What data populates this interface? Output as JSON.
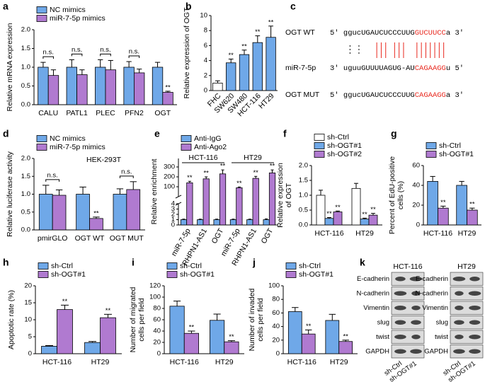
{
  "chart_data": [
    {
      "label": "a",
      "type": "bar",
      "ylabel": "Relative mRNA expression",
      "categories": [
        "CALU",
        "PATL1",
        "PLEC",
        "PFN2",
        "OGT"
      ],
      "series": [
        {
          "name": "NC mimics",
          "color": "#6fa8e8",
          "values": [
            1.0,
            1.0,
            1.0,
            1.0,
            1.0
          ],
          "errors": [
            0.13,
            0.2,
            0.2,
            0.15,
            0.13
          ]
        },
        {
          "name": "miR-7-5p mimics",
          "color": "#b07ad0",
          "values": [
            0.78,
            0.8,
            0.93,
            0.85,
            0.33
          ],
          "errors": [
            0.15,
            0.13,
            0.25,
            0.1,
            0.03
          ],
          "significance": [
            null,
            null,
            null,
            null,
            "**"
          ]
        }
      ],
      "comparison": [
        "n.s.",
        "n.s.",
        "n.s.",
        "n.s.",
        null
      ],
      "ylim": [
        0,
        2
      ],
      "yticks": [
        {
          "value": 0,
          "label": "0.0"
        },
        0.5,
        {
          "value": 1,
          "label": "1.0"
        },
        1.5,
        {
          "value": 2,
          "label": "2.0"
        }
      ],
      "legend": "top"
    },
    {
      "label": "b",
      "type": "bar",
      "ylabel": "Relative expression of OGT",
      "categories": [
        "FHC",
        "SW620",
        "SW480",
        "HCT-116",
        "HT29"
      ],
      "xtick_rotation": 45,
      "values": [
        1.0,
        3.7,
        4.8,
        6.4,
        7.1
      ],
      "errors": [
        0.3,
        0.5,
        0.6,
        0.9,
        1.5
      ],
      "colors": [
        "#ffffff",
        "#6fa8e8",
        "#6fa8e8",
        "#6fa8e8",
        "#6fa8e8"
      ],
      "significance": [
        null,
        "**",
        "**",
        "**",
        "**"
      ],
      "ylim": [
        0,
        10
      ],
      "yticks": [
        0,
        2,
        4,
        6,
        8,
        10
      ]
    },
    {
      "label": "d",
      "type": "bar",
      "ylabel": "Relative luciferase activity",
      "subtitle": "HEK-293T",
      "categories": [
        "pmirGLO",
        "OGT WT",
        "OGT MUT"
      ],
      "series": [
        {
          "name": "NC mimics",
          "color": "#6fa8e8",
          "values": [
            1.0,
            1.0,
            1.0
          ],
          "errors": [
            0.25,
            0.2,
            0.15
          ]
        },
        {
          "name": "miR-7-5p mimics",
          "color": "#b07ad0",
          "values": [
            0.97,
            0.32,
            1.13
          ],
          "errors": [
            0.15,
            0.04,
            0.22
          ],
          "significance": [
            null,
            "**",
            null
          ]
        }
      ],
      "comparison": [
        "n.s.",
        null,
        "n.s."
      ],
      "ylim": [
        0,
        2
      ],
      "yticks": [
        {
          "value": 0,
          "label": "0.0"
        },
        0.5,
        {
          "value": 1,
          "label": "1.0"
        },
        1.5,
        {
          "value": 2,
          "label": "2.0"
        }
      ],
      "legend": "top"
    },
    {
      "label": "e",
      "type": "bar",
      "ylabel": "Relative enrichment",
      "xtick_rotation": 60,
      "categories": [
        "miR-7-5p",
        "RHPN1-AS1",
        "OGT",
        "miR-7-5p",
        "RHPN1-AS1",
        "OGT"
      ],
      "groups": [
        "HCT-116",
        "HT29"
      ],
      "series": [
        {
          "name": "Anti-IgG",
          "color": "#6fa8e8",
          "values": [
            1.0,
            1.0,
            1.0,
            1.0,
            1.0,
            1.0
          ],
          "errors": [
            0.1,
            0.1,
            0.1,
            0.1,
            0.1,
            0.15
          ]
        },
        {
          "name": "Anti-Ago2",
          "color": "#b07ad0",
          "values": [
            140,
            180,
            230,
            90,
            185,
            240
          ],
          "errors": [
            15,
            20,
            40,
            8,
            20,
            30
          ],
          "significance": [
            "**",
            "**",
            "**",
            "**",
            "**",
            "**"
          ]
        }
      ],
      "ylim": [
        0,
        4
      ],
      "yticks": [
        0,
        1,
        2,
        3,
        4
      ],
      "ylim_upper": [
        0,
        300
      ],
      "yticks_upper": [
        100,
        200,
        300
      ],
      "legend": "top"
    },
    {
      "label": "f",
      "type": "bar",
      "ylabel": [
        "Relative expression",
        "of OGT"
      ],
      "categories": [
        "HCT-116",
        "HT29"
      ],
      "series": [
        {
          "name": "sh-Ctrl",
          "color": "#ffffff",
          "values": [
            1.0,
            1.23
          ],
          "errors": [
            0.17,
            0.17
          ]
        },
        {
          "name": "sh-OGT#1",
          "color": "#6fa8e8",
          "values": [
            0.22,
            0.2
          ],
          "errors": [
            0.03,
            0.03
          ],
          "significance": [
            "**",
            "**"
          ]
        },
        {
          "name": "sh-OGT#2",
          "color": "#b07ad0",
          "values": [
            0.44,
            0.33
          ],
          "errors": [
            0.03,
            0.06
          ],
          "significance": [
            "**",
            "**"
          ]
        }
      ],
      "ylim": [
        0,
        2
      ],
      "yticks": [
        {
          "value": 0,
          "label": "0.0"
        },
        0.5,
        {
          "value": 1,
          "label": "1.0"
        },
        1.5,
        {
          "value": 2,
          "label": "2.0"
        }
      ],
      "legend": "top"
    },
    {
      "label": "g",
      "type": "bar",
      "ylabel": [
        "Percent of EdU-positive",
        "cells (%)"
      ],
      "categories": [
        "HCT-116",
        "HT29"
      ],
      "series": [
        {
          "name": "sh-Ctrl",
          "color": "#6fa8e8",
          "values": [
            44,
            40
          ],
          "errors": [
            5,
            4
          ]
        },
        {
          "name": "sh-OGT#1",
          "color": "#b07ad0",
          "values": [
            17,
            15
          ],
          "errors": [
            2,
            2
          ],
          "significance": [
            "**",
            "**"
          ]
        }
      ],
      "ylim": [
        0,
        60
      ],
      "yticks": [
        0,
        20,
        40,
        60
      ],
      "legend": "top"
    },
    {
      "label": "h",
      "type": "bar",
      "ylabel": "Apoptotic rate (%)",
      "categories": [
        "HCT-116",
        "HT29"
      ],
      "series": [
        {
          "name": "sh-Ctrl",
          "color": "#6fa8e8",
          "values": [
            2.2,
            3.3
          ],
          "errors": [
            0.2,
            0.3
          ]
        },
        {
          "name": "sh-OGT#1",
          "color": "#b07ad0",
          "values": [
            13,
            10.6
          ],
          "errors": [
            1.3,
            1.0
          ],
          "significance": [
            "**",
            "**"
          ]
        }
      ],
      "ylim": [
        0,
        20
      ],
      "yticks": [
        0,
        5,
        10,
        15,
        20
      ],
      "legend": "top"
    },
    {
      "label": "i",
      "type": "bar",
      "ylabel": [
        "Number of migrated",
        "cells per field"
      ],
      "categories": [
        "HCT-116",
        "HT29"
      ],
      "series": [
        {
          "name": "sh-Ctrl",
          "color": "#6fa8e8",
          "values": [
            84,
            59
          ],
          "errors": [
            9,
            11
          ]
        },
        {
          "name": "sh-OGT#1",
          "color": "#b07ad0",
          "values": [
            36,
            21
          ],
          "errors": [
            4,
            2
          ],
          "significance": [
            "**",
            "**"
          ]
        }
      ],
      "ylim": [
        0,
        120
      ],
      "yticks": [
        0,
        20,
        40,
        60,
        80,
        100,
        120
      ],
      "legend": "top"
    },
    {
      "label": "j",
      "type": "bar",
      "ylabel": [
        "Number of invaded",
        "cells per field"
      ],
      "categories": [
        "HCT-116",
        "HT29"
      ],
      "series": [
        {
          "name": "sh-Ctrl",
          "color": "#6fa8e8",
          "values": [
            62,
            49
          ],
          "errors": [
            6,
            9
          ]
        },
        {
          "name": "sh-OGT#1",
          "color": "#b07ad0",
          "values": [
            29,
            18
          ],
          "errors": [
            6,
            2
          ],
          "significance": [
            "**",
            "**"
          ]
        }
      ],
      "ylim": [
        0,
        100
      ],
      "yticks": [
        0,
        20,
        40,
        60,
        80,
        100
      ],
      "legend": "top"
    }
  ],
  "sequence": {
    "label": "c",
    "rows": [
      {
        "name": "OGT WT",
        "prefix": "5' ggucUGAUCUCCCUUG",
        "highlight": "GUCUUCC",
        "suffix": "a 3'"
      },
      {
        "name": "miR-7-5p",
        "prefix": "3' uguuGUUUUAGUG-AU",
        "highlight": "CAGAAGG",
        "suffix": "u 5'"
      },
      {
        "name": "OGT MUT",
        "prefix": "5' ggucUGAUCUCCCUUG",
        "highlight": "CAGAAGG",
        "suffix": "a 3'"
      }
    ]
  },
  "blot": {
    "label": "k",
    "proteins": [
      "E-cadherin",
      "N-cadherin",
      "Vimentin",
      "slug",
      "twist",
      "GAPDH"
    ],
    "panels": [
      {
        "title": "HCT-116",
        "lanes": [
          "sh-Ctrl",
          "sh-OGT#1"
        ]
      },
      {
        "title": "HT29",
        "lanes": [
          "sh-Ctrl",
          "sh-OGT#1"
        ]
      }
    ]
  }
}
